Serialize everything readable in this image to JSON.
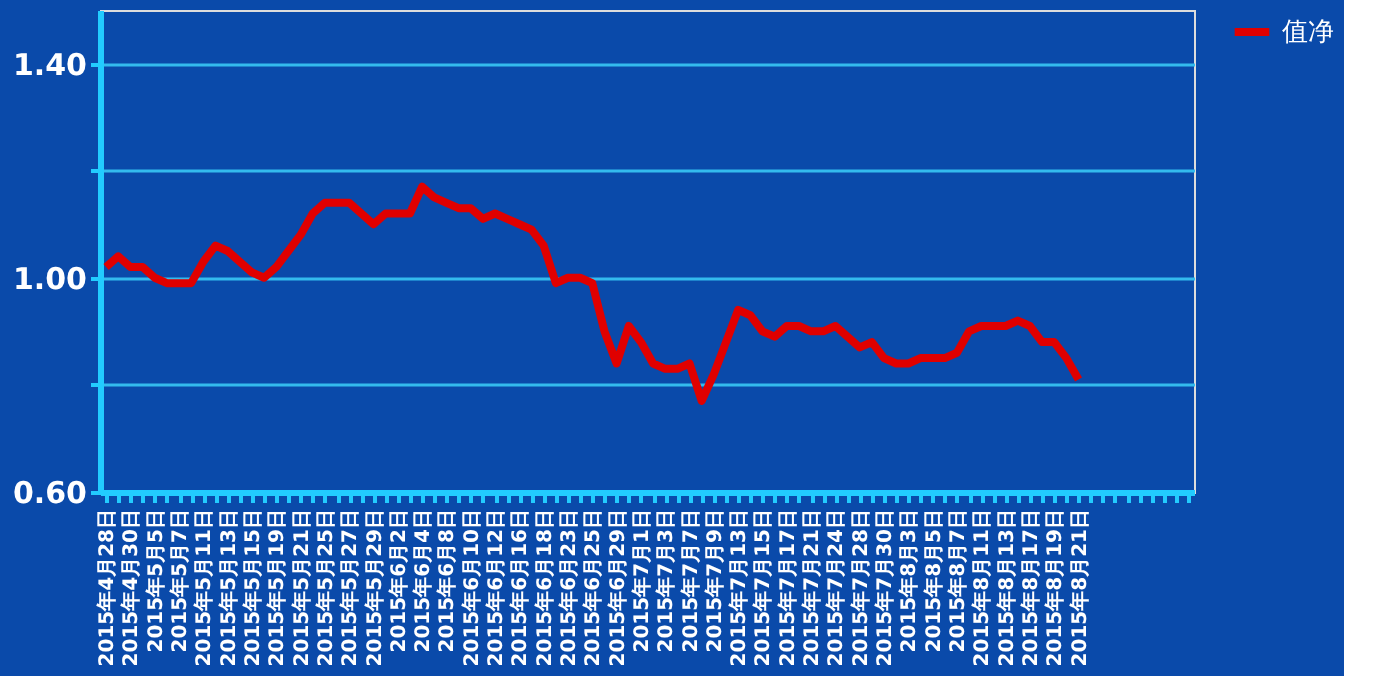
{
  "chart_data": {
    "type": "line",
    "categories": [
      "2015年4月28日",
      null,
      "2015年4月30日",
      null,
      "2015年5月5日",
      null,
      "2015年5月7日",
      null,
      "2015年5月11日",
      null,
      "2015年5月13日",
      null,
      "2015年5月15日",
      null,
      "2015年5月19日",
      null,
      "2015年5月21日",
      null,
      "2015年5月25日",
      null,
      "2015年5月27日",
      null,
      "2015年5月29日",
      null,
      "2015年6月2日",
      null,
      "2015年6月4日",
      null,
      "2015年6月8日",
      null,
      "2015年6月10日",
      null,
      "2015年6月12日",
      null,
      "2015年6月16日",
      null,
      "2015年6月18日",
      null,
      "2015年6月23日",
      null,
      "2015年6月25日",
      null,
      "2015年6月29日",
      null,
      "2015年7月1日",
      null,
      "2015年7月3日",
      null,
      "2015年7月7日",
      null,
      "2015年7月9日",
      null,
      "2015年7月13日",
      null,
      "2015年7月15日",
      null,
      "2015年7月17日",
      null,
      "2015年7月21日",
      null,
      "2015年7月24日",
      null,
      "2015年7月28日",
      null,
      "2015年7月30日",
      null,
      "2015年8月3日",
      null,
      "2015年8月5日",
      null,
      "2015年8月7日",
      null,
      "2015年8月11日",
      null,
      "2015年8月13日",
      null,
      "2015年8月17日",
      null,
      "2015年8月19日",
      null,
      "2015年8月21日",
      null,
      null,
      null,
      null,
      null,
      null,
      null,
      null,
      null
    ],
    "series": [
      {
        "name": "值净",
        "color": "#e00000",
        "values": [
          1.02,
          1.04,
          1.02,
          1.02,
          1.0,
          0.99,
          0.99,
          0.99,
          1.03,
          1.06,
          1.05,
          1.03,
          1.01,
          1.0,
          1.02,
          1.05,
          1.08,
          1.12,
          1.14,
          1.14,
          1.14,
          1.12,
          1.1,
          1.12,
          1.12,
          1.12,
          1.17,
          1.15,
          1.14,
          1.13,
          1.13,
          1.11,
          1.12,
          1.11,
          1.1,
          1.09,
          1.06,
          0.99,
          1.0,
          1.0,
          0.99,
          0.9,
          0.84,
          0.91,
          0.88,
          0.84,
          0.83,
          0.83,
          0.84,
          0.77,
          0.82,
          0.88,
          0.94,
          0.93,
          0.9,
          0.89,
          0.91,
          0.91,
          0.9,
          0.9,
          0.91,
          0.89,
          0.87,
          0.88,
          0.85,
          0.84,
          0.84,
          0.85,
          0.85,
          0.85,
          0.86,
          0.9,
          0.91,
          0.91,
          0.91,
          0.92,
          0.91,
          0.88,
          0.88,
          0.85,
          0.81,
          null,
          null,
          null,
          null,
          null,
          null,
          null,
          null,
          null
        ]
      }
    ],
    "ylim": [
      0.6,
      1.5
    ],
    "yticks": [
      {
        "value": 0.6,
        "label": "0.60"
      },
      {
        "value": 0.8,
        "label": null
      },
      {
        "value": 1.0,
        "label": "1.00"
      },
      {
        "value": 1.2,
        "label": null
      },
      {
        "value": 1.4,
        "label": "1.40"
      }
    ],
    "grid": "y",
    "legend": "right",
    "marker": "none",
    "line_style": "solid"
  }
}
